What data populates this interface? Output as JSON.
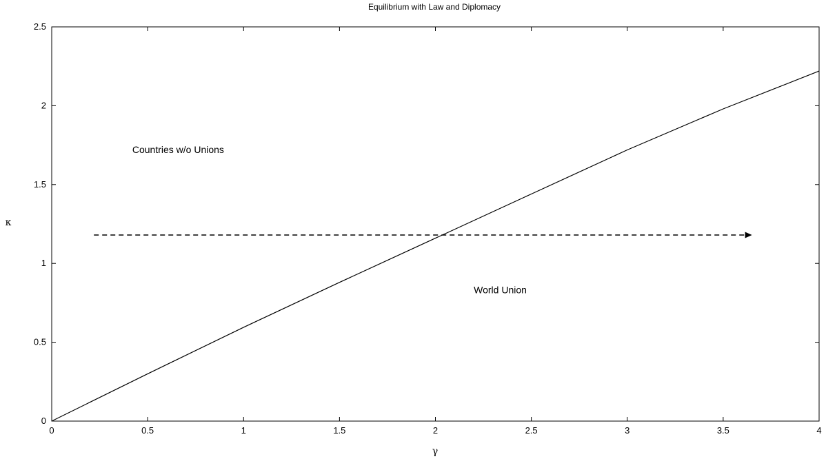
{
  "chart_data": {
    "type": "line",
    "title": "Equilibrium with Law and Diplomacy",
    "xlabel": "γ",
    "ylabel": "κ",
    "xlim": [
      0,
      4
    ],
    "ylim": [
      0,
      2.5
    ],
    "xticks": [
      0,
      0.5,
      1,
      1.5,
      2,
      2.5,
      3,
      3.5,
      4
    ],
    "xtick_labels": [
      "0",
      "0.5",
      "1",
      "1.5",
      "2",
      "2.5",
      "3",
      "3.5",
      "4"
    ],
    "yticks": [
      0,
      0.5,
      1,
      1.5,
      2,
      2.5
    ],
    "ytick_labels": [
      "0",
      "0.5",
      "1",
      "1.5",
      "2",
      "2.5"
    ],
    "grid": false,
    "series": [
      {
        "x": [
          0,
          0.5,
          1,
          1.5,
          2,
          2.5,
          3,
          3.5,
          4
        ],
        "y": [
          0,
          0.3,
          0.595,
          0.88,
          1.16,
          1.44,
          1.72,
          1.98,
          2.22
        ],
        "color": "#000000",
        "style": "solid"
      }
    ],
    "arrow": {
      "x_start": 0.22,
      "x_end": 3.65,
      "y": 1.18,
      "color": "#000000",
      "style": "dashed"
    },
    "annotations": [
      {
        "text": "Countries w/o Unions",
        "x": 0.42,
        "y": 1.7
      },
      {
        "text": "World Union",
        "x": 2.2,
        "y": 0.81
      }
    ]
  }
}
